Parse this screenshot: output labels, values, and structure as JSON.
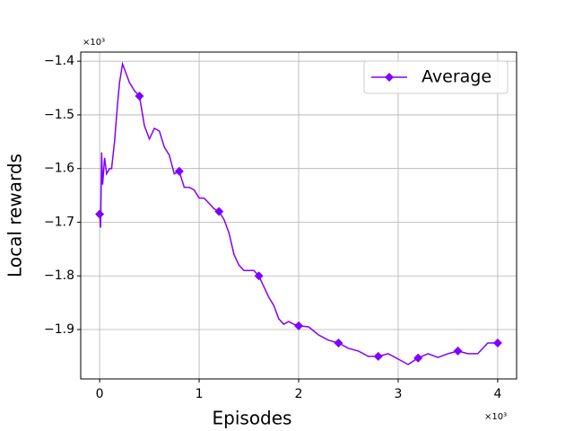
{
  "chart_data": {
    "type": "line",
    "xlabel": "Episodes",
    "ylabel": "Local rewards",
    "x_offset_label": "×10³",
    "y_offset_label": "×10³",
    "x": [
      0,
      0.01,
      0.02,
      0.03,
      0.05,
      0.07,
      0.1,
      0.12,
      0.15,
      0.18,
      0.2,
      0.23,
      0.26,
      0.3,
      0.35,
      0.4,
      0.45,
      0.5,
      0.55,
      0.6,
      0.65,
      0.7,
      0.75,
      0.8,
      0.85,
      0.9,
      0.95,
      1.0,
      1.05,
      1.1,
      1.15,
      1.2,
      1.25,
      1.3,
      1.35,
      1.4,
      1.45,
      1.5,
      1.55,
      1.6,
      1.65,
      1.7,
      1.75,
      1.8,
      1.85,
      1.9,
      1.95,
      2.0,
      2.1,
      2.2,
      2.3,
      2.4,
      2.5,
      2.6,
      2.7,
      2.8,
      2.9,
      3.0,
      3.1,
      3.2,
      3.3,
      3.4,
      3.5,
      3.6,
      3.7,
      3.8,
      3.9,
      4.0
    ],
    "series": [
      {
        "name": "Average",
        "color": "#8000ff",
        "marker_indices": [
          0,
          15,
          23,
          31,
          39,
          47,
          51,
          55,
          59,
          63,
          67
        ],
        "values": [
          -1.685,
          -1.71,
          -1.57,
          -1.63,
          -1.58,
          -1.61,
          -1.6,
          -1.6,
          -1.55,
          -1.48,
          -1.44,
          -1.405,
          -1.42,
          -1.44,
          -1.455,
          -1.465,
          -1.52,
          -1.545,
          -1.525,
          -1.53,
          -1.56,
          -1.575,
          -1.61,
          -1.605,
          -1.635,
          -1.635,
          -1.64,
          -1.655,
          -1.655,
          -1.665,
          -1.675,
          -1.68,
          -1.695,
          -1.72,
          -1.76,
          -1.78,
          -1.79,
          -1.79,
          -1.79,
          -1.8,
          -1.82,
          -1.84,
          -1.855,
          -1.88,
          -1.89,
          -1.885,
          -1.89,
          -1.893,
          -1.895,
          -1.91,
          -1.92,
          -1.925,
          -1.935,
          -1.94,
          -1.95,
          -1.95,
          -1.945,
          -1.955,
          -1.965,
          -1.953,
          -1.945,
          -1.952,
          -1.945,
          -1.94,
          -1.945,
          -1.945,
          -1.925,
          -1.925
        ]
      }
    ],
    "xlim": [
      -0.19,
      4.19
    ],
    "ylim": [
      -1.992,
      -1.383
    ],
    "xticks": [
      0,
      1,
      2,
      3,
      4
    ],
    "yticks": [
      {
        "value": -1.9,
        "label": "−1.9"
      },
      {
        "value": -1.8,
        "label": "−1.8"
      },
      {
        "value": -1.7,
        "label": "−1.7"
      },
      {
        "value": -1.6,
        "label": "−1.6"
      },
      {
        "value": -1.5,
        "label": "−1.5"
      },
      {
        "value": -1.4,
        "label": "−1.4"
      }
    ],
    "grid": true,
    "legend_position": "upper-right"
  }
}
